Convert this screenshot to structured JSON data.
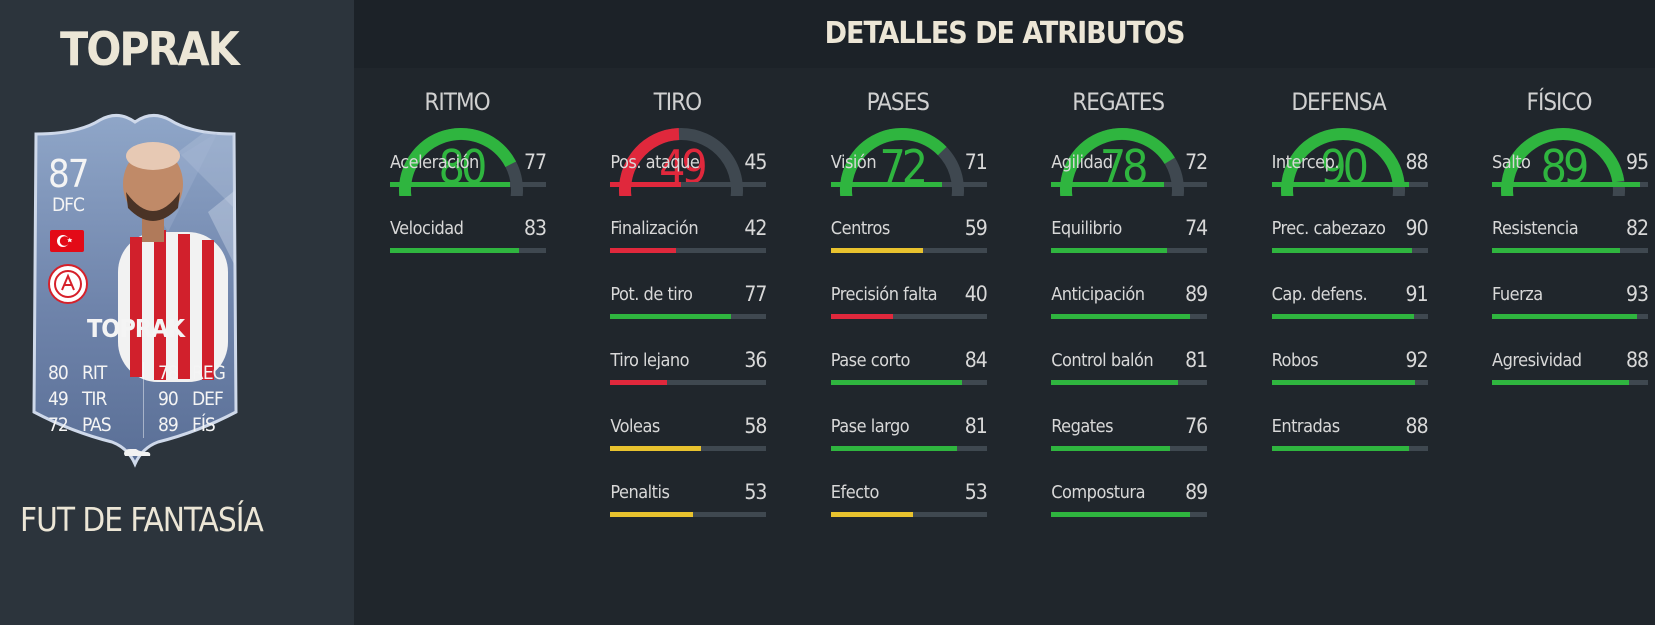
{
  "player": {
    "name": "TOPRAK",
    "card": {
      "rating": "87",
      "position": "DFC",
      "name": "TOPRAK",
      "stats_left": [
        {
          "value": "80",
          "abbr": "RIT"
        },
        {
          "value": "49",
          "abbr": "TIR"
        },
        {
          "value": "72",
          "abbr": "PAS"
        }
      ],
      "stats_right": [
        {
          "value": "78",
          "abbr": "REG"
        },
        {
          "value": "90",
          "abbr": "DEF"
        },
        {
          "value": "89",
          "abbr": "FÍS"
        }
      ]
    },
    "promo": "FUT DE FANTASÍA"
  },
  "section_title": "DETALLES DE ATRIBUTOS",
  "colors": {
    "green": "#2fb53f",
    "yellow": "#e8c22e",
    "red": "#e0283c",
    "track": "#3f4850"
  },
  "categories": [
    {
      "title": "RITMO",
      "value": 80,
      "stats": [
        {
          "label": "Aceleración",
          "value": 77
        },
        {
          "label": "Velocidad",
          "value": 83
        }
      ]
    },
    {
      "title": "TIRO",
      "value": 49,
      "stats": [
        {
          "label": "Pos. ataque",
          "value": 45
        },
        {
          "label": "Finalización",
          "value": 42
        },
        {
          "label": "Pot. de tiro",
          "value": 77
        },
        {
          "label": "Tiro lejano",
          "value": 36
        },
        {
          "label": "Voleas",
          "value": 58
        },
        {
          "label": "Penaltis",
          "value": 53
        }
      ]
    },
    {
      "title": "PASES",
      "value": 72,
      "stats": [
        {
          "label": "Visión",
          "value": 71
        },
        {
          "label": "Centros",
          "value": 59
        },
        {
          "label": "Precisión falta",
          "value": 40
        },
        {
          "label": "Pase corto",
          "value": 84
        },
        {
          "label": "Pase largo",
          "value": 81
        },
        {
          "label": "Efecto",
          "value": 53
        }
      ]
    },
    {
      "title": "REGATES",
      "value": 78,
      "stats": [
        {
          "label": "Agilidad",
          "value": 72
        },
        {
          "label": "Equilibrio",
          "value": 74
        },
        {
          "label": "Anticipación",
          "value": 89
        },
        {
          "label": "Control balón",
          "value": 81
        },
        {
          "label": "Regates",
          "value": 76
        },
        {
          "label": "Compostura",
          "value": 89
        }
      ]
    },
    {
      "title": "DEFENSA",
      "value": 90,
      "stats": [
        {
          "label": "Intercep.",
          "value": 88
        },
        {
          "label": "Prec. cabezazo",
          "value": 90
        },
        {
          "label": "Cap. defens.",
          "value": 91
        },
        {
          "label": "Robos",
          "value": 92
        },
        {
          "label": "Entradas",
          "value": 88
        }
      ]
    },
    {
      "title": "FÍSICO",
      "value": 89,
      "stats": [
        {
          "label": "Salto",
          "value": 95
        },
        {
          "label": "Resistencia",
          "value": 82
        },
        {
          "label": "Fuerza",
          "value": 93
        },
        {
          "label": "Agresividad",
          "value": 88
        }
      ]
    }
  ]
}
